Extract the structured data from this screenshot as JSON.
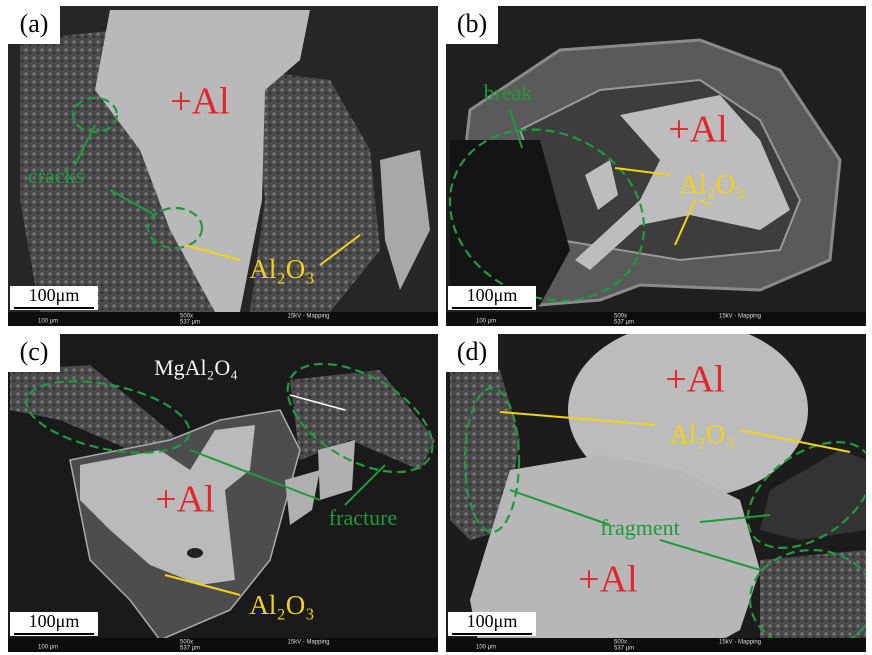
{
  "panels": [
    {
      "label": "(a)",
      "annotations": [
        "+Al",
        "cracks",
        "Al₂O₃"
      ],
      "scale_bar": "100μm",
      "footer": {
        "scale": "100 μm",
        "magnification": "500x",
        "field": "537 μm",
        "mode": "15kV - Mapping"
      }
    },
    {
      "label": "(b)",
      "annotations": [
        "break",
        "+Al",
        "Al₂O₃"
      ],
      "scale_bar": "100μm",
      "footer": {
        "scale": "100 μm",
        "magnification": "500x",
        "field": "537 μm",
        "mode": "15kV - Mapping"
      }
    },
    {
      "label": "(c)",
      "annotations": [
        "MgAl₂O₄",
        "+Al",
        "fracture",
        "Al₂O₃"
      ],
      "scale_bar": "100μm",
      "footer": {
        "scale": "100 μm",
        "magnification": "500x",
        "field": "537 μm",
        "mode": "15kV - Mapping"
      }
    },
    {
      "label": "(d)",
      "annotations": [
        "+Al",
        "Al₂O₃",
        "fragment",
        "+Al"
      ],
      "scale_bar": "100μm",
      "footer": {
        "scale": "100 μm",
        "magnification": "500x",
        "field": "537 μm",
        "mode": "15kV - Mapping"
      }
    }
  ]
}
